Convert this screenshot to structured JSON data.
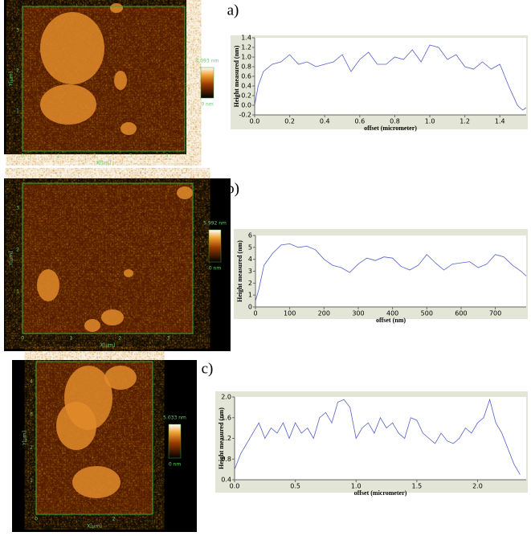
{
  "panels": [
    {
      "label": "a)",
      "max_label": "4.093 nm",
      "min_label": "0 nm",
      "x_label": "X[µm]",
      "y_label": "Y[µm]",
      "xticks": [
        "0",
        "1",
        "2",
        "3",
        "4"
      ],
      "yticks": [
        "1",
        "2",
        "3"
      ]
    },
    {
      "label": "b)",
      "max_label": "5.992 nm",
      "min_label": "0 nm",
      "x_label": "X[µm]",
      "y_label": "Y[µm]",
      "xticks": [
        "0",
        "1",
        "2",
        "3"
      ],
      "yticks": [
        "1",
        "2",
        "3"
      ]
    },
    {
      "label": "c)",
      "max_label": "5.033 nm",
      "min_label": "0 nm",
      "x_label": "X[µm]",
      "y_label": "Y[µm]",
      "xticks": [
        "0",
        "2"
      ],
      "yticks": [
        "1",
        "2",
        "3",
        "4"
      ]
    }
  ],
  "chart_data": [
    {
      "type": "line",
      "x_label": "offset (micrometer)",
      "y_label": "Height measured (nm)",
      "x": [
        0,
        0.02,
        0.05,
        0.1,
        0.15,
        0.2,
        0.25,
        0.3,
        0.35,
        0.4,
        0.45,
        0.5,
        0.55,
        0.6,
        0.65,
        0.7,
        0.75,
        0.8,
        0.85,
        0.9,
        0.95,
        1.0,
        1.05,
        1.1,
        1.15,
        1.2,
        1.25,
        1.3,
        1.35,
        1.4,
        1.45,
        1.5,
        1.53,
        1.55
      ],
      "series": [
        {
          "color": "#5560c8",
          "values": [
            0.0,
            0.4,
            0.7,
            0.85,
            0.9,
            1.05,
            0.85,
            0.9,
            0.8,
            0.85,
            0.9,
            1.05,
            0.7,
            0.95,
            1.1,
            0.85,
            0.85,
            1.0,
            0.95,
            1.15,
            0.9,
            1.25,
            1.2,
            0.95,
            1.05,
            0.8,
            0.75,
            0.9,
            0.75,
            0.85,
            0.4,
            0.0,
            -0.1,
            -0.05
          ]
        }
      ],
      "xlim": [
        0,
        1.55
      ],
      "ylim": [
        -0.2,
        1.4
      ],
      "xticks": [
        {
          "value": 0,
          "label": "0.0"
        },
        0.2,
        0.4,
        0.6,
        0.8,
        {
          "value": 1,
          "label": "1.0"
        },
        1.2,
        1.4
      ],
      "yticks": [
        -0.2,
        {
          "value": 0,
          "label": "0.0"
        },
        0.2,
        0.4,
        0.6,
        0.8,
        {
          "value": 1,
          "label": "1.0"
        },
        1.2,
        1.4
      ]
    },
    {
      "type": "line",
      "x_label": "offset (nm)",
      "y_label": "Height measured (nm)",
      "x": [
        0,
        10,
        25,
        50,
        75,
        100,
        125,
        150,
        175,
        200,
        225,
        250,
        275,
        300,
        325,
        350,
        375,
        400,
        425,
        450,
        475,
        500,
        525,
        550,
        575,
        600,
        625,
        650,
        675,
        700,
        725,
        750,
        775,
        790
      ],
      "series": [
        {
          "color": "#5560c8",
          "values": [
            0.5,
            1.5,
            3.5,
            4.5,
            5.2,
            5.3,
            5.0,
            5.1,
            4.8,
            4.0,
            3.5,
            3.3,
            2.9,
            3.6,
            4.1,
            3.9,
            4.2,
            4.1,
            3.4,
            3.1,
            3.5,
            4.4,
            3.7,
            3.1,
            3.6,
            3.7,
            3.8,
            3.3,
            3.6,
            4.4,
            4.2,
            3.5,
            3.0,
            2.6
          ]
        }
      ],
      "xlim": [
        0,
        790
      ],
      "ylim": [
        0,
        6
      ],
      "xticks": [
        0,
        100,
        200,
        300,
        400,
        500,
        600,
        700
      ],
      "yticks": [
        0,
        1,
        2,
        3,
        4,
        5,
        6
      ]
    },
    {
      "type": "line",
      "x_label": "offset (micrometer)",
      "y_label": "Height measured (nm)",
      "x": [
        0,
        0.05,
        0.1,
        0.15,
        0.2,
        0.25,
        0.3,
        0.35,
        0.4,
        0.45,
        0.5,
        0.55,
        0.6,
        0.65,
        0.7,
        0.75,
        0.8,
        0.85,
        0.9,
        0.95,
        1.0,
        1.05,
        1.1,
        1.15,
        1.2,
        1.25,
        1.3,
        1.35,
        1.4,
        1.45,
        1.5,
        1.55,
        1.6,
        1.65,
        1.7,
        1.75,
        1.8,
        1.85,
        1.9,
        1.95,
        2.0,
        2.05,
        2.1,
        2.15,
        2.2,
        2.25,
        2.3,
        2.35
      ],
      "series": [
        {
          "color": "#5560c8",
          "values": [
            0.6,
            0.9,
            1.1,
            1.3,
            1.5,
            1.2,
            1.4,
            1.3,
            1.5,
            1.2,
            1.5,
            1.3,
            1.4,
            1.2,
            1.6,
            1.7,
            1.5,
            1.9,
            1.95,
            1.8,
            1.2,
            1.4,
            1.5,
            1.3,
            1.6,
            1.4,
            1.5,
            1.3,
            1.2,
            1.6,
            1.55,
            1.3,
            1.2,
            1.1,
            1.3,
            1.15,
            1.1,
            1.2,
            1.4,
            1.3,
            1.5,
            1.6,
            1.95,
            1.5,
            1.3,
            1.0,
            0.7,
            0.5
          ]
        }
      ],
      "xlim": [
        0,
        2.4
      ],
      "ylim": [
        0.4,
        2.0
      ],
      "xticks": [
        {
          "value": 0,
          "label": "0.0"
        },
        0.5,
        {
          "value": 1,
          "label": "1.0"
        },
        1.5,
        {
          "value": 2,
          "label": "2.0"
        }
      ],
      "yticks": [
        0.4,
        0.8,
        1.2,
        1.6,
        {
          "value": 2,
          "label": "2.0"
        }
      ]
    }
  ]
}
